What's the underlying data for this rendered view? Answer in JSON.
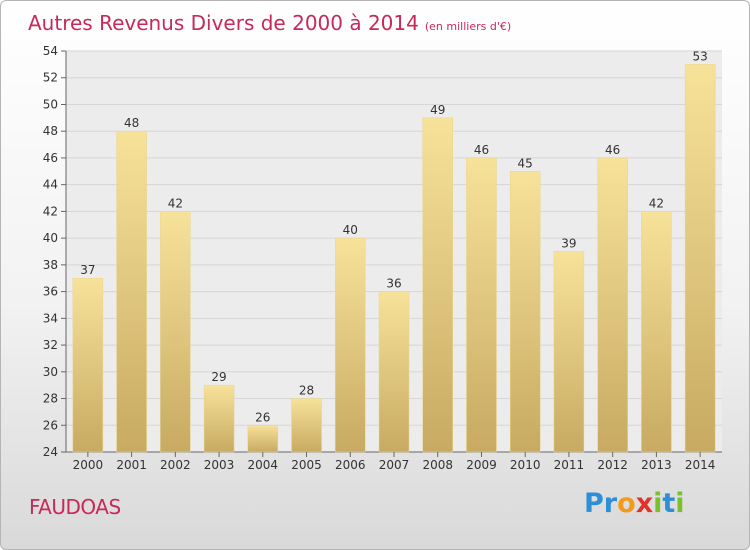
{
  "title": "Autres Revenus Divers de 2000 à 2014",
  "unit": "(en milliers d'€)",
  "commune": "FAUDOAS",
  "logo": {
    "letters": [
      "P",
      "r",
      "o",
      "x",
      "i",
      "t",
      "i"
    ],
    "colors": [
      "#2e8fd6",
      "#2e8fd6",
      "#f29a1b",
      "#e2332a",
      "#7bbf2e",
      "#2e8fd6",
      "#7bbf2e"
    ]
  },
  "chart_data": {
    "type": "bar",
    "categories": [
      "2000",
      "2001",
      "2002",
      "2003",
      "2004",
      "2005",
      "2006",
      "2007",
      "2008",
      "2009",
      "2010",
      "2011",
      "2012",
      "2013",
      "2014"
    ],
    "values": [
      37,
      48,
      42,
      29,
      26,
      28,
      40,
      36,
      49,
      46,
      45,
      39,
      46,
      42,
      53
    ],
    "ylim": [
      24,
      54
    ],
    "yticks": [
      24,
      26,
      28,
      30,
      32,
      34,
      36,
      38,
      40,
      42,
      44,
      46,
      48,
      50,
      52,
      54
    ],
    "grid": true,
    "bar_color_top": "#f7e29a",
    "bar_color_bottom": "#c8aa62"
  }
}
